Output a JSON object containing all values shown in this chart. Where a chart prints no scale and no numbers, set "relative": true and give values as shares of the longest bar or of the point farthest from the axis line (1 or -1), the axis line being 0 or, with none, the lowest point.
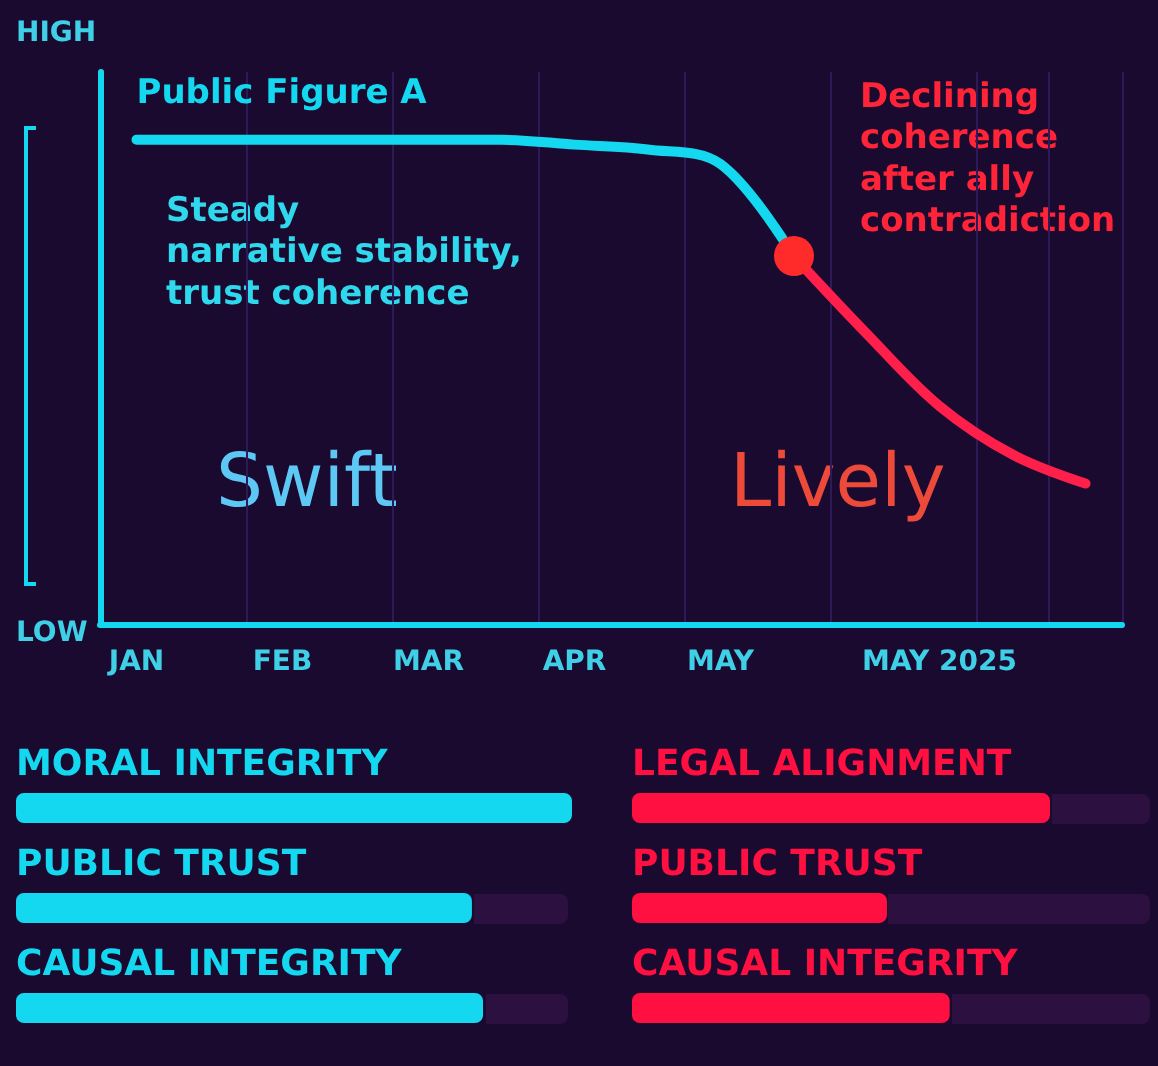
{
  "chart_data": [
    {
      "type": "line",
      "relative": true,
      "categories": [
        "JAN",
        null,
        "FEB",
        null,
        "MAR",
        null,
        "APR",
        null,
        "MAY",
        null,
        null,
        "MAY 2025",
        null,
        null
      ],
      "grid": "x",
      "legend": false,
      "marker": "none",
      "line_style": "solid",
      "series": [
        {
          "name": "Public Figure A",
          "color": "#14d8f0",
          "values": [
            1,
            1,
            1,
            1,
            1,
            1,
            0.99,
            0.98,
            0.95,
            0.76,
            null,
            null,
            null,
            null
          ]
        },
        {
          "color": "#ff1f4b",
          "values": [
            null,
            null,
            null,
            null,
            null,
            null,
            null,
            null,
            null,
            0.76,
            0.6,
            0.45,
            0.35,
            0.29
          ]
        }
      ],
      "annotations": [
        "HIGH",
        "LOW",
        "Steady\nnarrative stability,\ntrust coherence",
        "Declining\ncoherence\nafter ally\ncontradiction",
        "Swift",
        "Lively"
      ]
    },
    {
      "type": "bar",
      "orientation": "horizontal",
      "relative": true,
      "categories": [
        "MORAL INTEGRITY",
        "PUBLIC TRUST",
        "CAUSAL INTEGRITY"
      ],
      "values": [
        1,
        0.82,
        0.84
      ],
      "color": "#14d8f0"
    },
    {
      "type": "bar",
      "orientation": "horizontal",
      "relative": true,
      "categories": [
        "LEGAL ALIGNMENT",
        "PUBLIC TRUST",
        "CAUSAL INTEGRITY"
      ],
      "values": [
        1,
        0.61,
        0.76
      ],
      "color": "#ff1040"
    }
  ]
}
